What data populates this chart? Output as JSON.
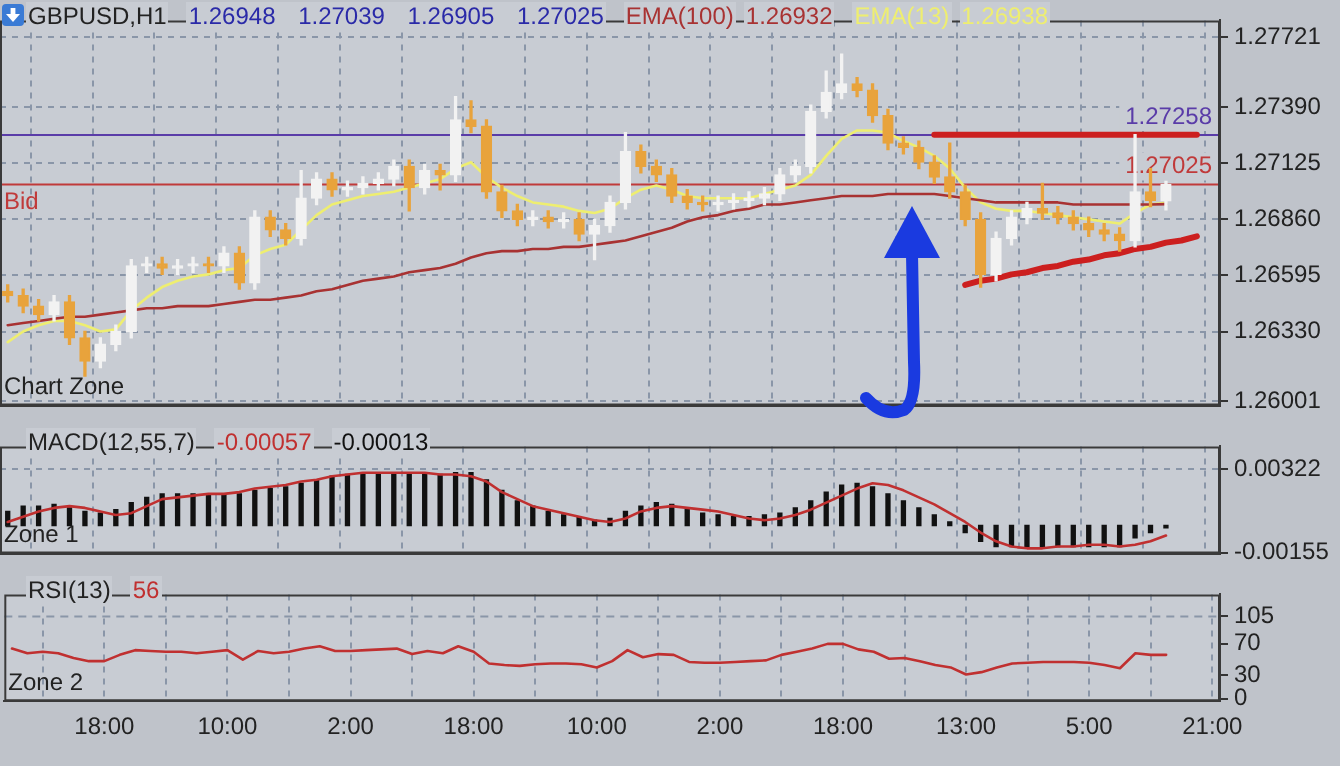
{
  "chart_data": [
    {
      "type": "candlestick",
      "title": "GBPUSD,H1",
      "subtitle": "1.26948 1.27039 1.26905 1.27025",
      "categories": [
        null,
        null,
        null,
        null,
        null,
        null,
        null,
        null,
        null,
        null,
        null,
        null,
        null,
        null,
        null,
        null,
        null,
        null,
        null,
        null,
        null,
        null,
        null,
        null,
        null,
        null,
        null,
        null,
        null,
        null,
        null,
        null,
        null,
        null,
        null,
        null,
        null,
        null,
        null,
        null,
        null,
        null,
        null,
        null,
        null,
        null,
        null,
        null,
        null,
        null,
        null,
        null,
        null,
        null,
        null,
        null,
        null,
        null,
        null,
        null,
        null,
        null,
        null,
        null,
        null,
        null,
        null,
        null,
        null,
        null,
        null,
        null,
        null,
        null,
        null,
        null,
        null,
        null,
        null
      ],
      "series": [
        {
          "type": "candlestick",
          "colors": [
            "#e8a33c",
            "#e8a33c",
            "#e8a33c",
            "#f2f2f2",
            "#e8a33c",
            "#e8a33c",
            "#f2f2f2",
            "#f2f2f2",
            "#f2f2f2",
            "#f2f2f2",
            "#e8a33c",
            "#f2f2f2",
            "#f2f2f2",
            "#e8a33c",
            "#f2f2f2",
            "#e8a33c",
            "#f2f2f2",
            "#e8a33c",
            "#e8a33c",
            "#f2f2f2",
            "#f2f2f2",
            "#e8a33c",
            "#f2f2f2",
            "#f2f2f2",
            "#f2f2f2",
            "#f2f2f2",
            "#e8a33c",
            "#f2f2f2",
            "#e8a33c",
            "#f2f2f2",
            "#e8a33c",
            "#e8a33c",
            "#e8a33c",
            "#e8a33c",
            "#f2f2f2",
            "#e8a33c",
            "#f2f2f2",
            "#e8a33c",
            "#f2f2f2",
            "#f2f2f2",
            "#f2f2f2",
            "#e8a33c",
            "#e8a33c",
            "#e8a33c",
            "#e8a33c",
            "#e8a33c",
            "#f2f2f2",
            "#f2f2f2",
            "#f2f2f2",
            "#f2f2f2",
            "#f2f2f2",
            "#f2f2f2",
            "#f2f2f2",
            "#f2f2f2",
            "#f2f2f2",
            "#e8a33c",
            "#e8a33c",
            "#e8a33c",
            "#e8a33c",
            "#e8a33c",
            "#e8a33c",
            "#e8a33c",
            "#e8a33c",
            "#e8a33c",
            "#f2f2f2",
            "#f2f2f2",
            "#f2f2f2",
            "#e8a33c",
            "#e8a33c",
            "#e8a33c",
            "#e8a33c",
            "#e8a33c",
            "#e8a33c",
            "#f2f2f2",
            "#e8a33c",
            "#f2f2f2",
            null,
            null,
            null
          ],
          "ohlc": [
            [
              1.2652,
              1.2655,
              1.2647,
              1.265
            ],
            [
              1.265,
              1.2653,
              1.2642,
              1.2645
            ],
            [
              1.2645,
              1.2648,
              1.2638,
              1.2641
            ],
            [
              1.2641,
              1.265,
              1.2638,
              1.2647
            ],
            [
              1.2647,
              1.265,
              1.2627,
              1.263
            ],
            [
              1.263,
              1.2633,
              1.2612,
              1.2619
            ],
            [
              1.2619,
              1.263,
              1.2616,
              1.2627
            ],
            [
              1.2627,
              1.2636,
              1.2624,
              1.2633
            ],
            [
              1.2633,
              1.2667,
              1.263,
              1.2664
            ],
            [
              1.2664,
              1.2668,
              1.2661,
              1.2665
            ],
            [
              1.2665,
              1.2668,
              1.266,
              1.2663
            ],
            [
              1.2663,
              1.2667,
              1.266,
              1.2664
            ],
            [
              1.2664,
              1.2668,
              1.2661,
              1.2665
            ],
            [
              1.2665,
              1.2668,
              1.2661,
              1.2664
            ],
            [
              1.2664,
              1.2673,
              1.2661,
              1.267
            ],
            [
              1.267,
              1.2673,
              1.2653,
              1.2656
            ],
            [
              1.2656,
              1.269,
              1.2653,
              1.2687
            ],
            [
              1.2687,
              1.269,
              1.2678,
              1.2681
            ],
            [
              1.2681,
              1.2684,
              1.2674,
              1.2677
            ],
            [
              1.2677,
              1.2709,
              1.2674,
              1.2696
            ],
            [
              1.2696,
              1.2708,
              1.2693,
              1.2705
            ],
            [
              1.2705,
              1.2708,
              1.2697,
              1.27
            ],
            [
              1.27,
              1.2704,
              1.2697,
              1.2701
            ],
            [
              1.2701,
              1.2706,
              1.2698,
              1.2703
            ],
            [
              1.2703,
              1.2708,
              1.27,
              1.2705
            ],
            [
              1.2705,
              1.2714,
              1.2702,
              1.2711
            ],
            [
              1.2711,
              1.2714,
              1.269,
              1.2701
            ],
            [
              1.2701,
              1.2712,
              1.2698,
              1.2709
            ],
            [
              1.2709,
              1.2712,
              1.27,
              1.2707
            ],
            [
              1.2707,
              1.2744,
              1.2704,
              1.2733
            ],
            [
              1.2733,
              1.2742,
              1.2727,
              1.273
            ],
            [
              1.273,
              1.2733,
              1.2696,
              1.2699
            ],
            [
              1.2699,
              1.2702,
              1.2687,
              1.269
            ],
            [
              1.269,
              1.2693,
              1.2683,
              1.2686
            ],
            [
              1.2686,
              1.269,
              1.2683,
              1.2687
            ],
            [
              1.2687,
              1.269,
              1.2682,
              1.2685
            ],
            [
              1.2685,
              1.2689,
              1.2682,
              1.2686
            ],
            [
              1.2686,
              1.2689,
              1.2676,
              1.2679
            ],
            [
              1.2679,
              1.2686,
              1.2667,
              1.2683
            ],
            [
              1.2683,
              1.2697,
              1.268,
              1.2694
            ],
            [
              1.2694,
              1.2727,
              1.2691,
              1.2718
            ],
            [
              1.2718,
              1.2721,
              1.2708,
              1.2711
            ],
            [
              1.2711,
              1.2714,
              1.2704,
              1.2707
            ],
            [
              1.2707,
              1.271,
              1.2694,
              1.2697
            ],
            [
              1.2697,
              1.27,
              1.2691,
              1.2694
            ],
            [
              1.2694,
              1.2697,
              1.269,
              1.2693
            ],
            [
              1.2693,
              1.2697,
              1.269,
              1.2694
            ],
            [
              1.2694,
              1.2698,
              1.2691,
              1.2695
            ],
            [
              1.2695,
              1.2699,
              1.2692,
              1.2696
            ],
            [
              1.2696,
              1.2701,
              1.2693,
              1.2698
            ],
            [
              1.2698,
              1.271,
              1.2695,
              1.2707
            ],
            [
              1.2707,
              1.2714,
              1.2704,
              1.2711
            ],
            [
              1.2711,
              1.274,
              1.2708,
              1.2737
            ],
            [
              1.2737,
              1.2756,
              1.2734,
              1.2746
            ],
            [
              1.2746,
              1.2764,
              1.2743,
              1.275
            ],
            [
              1.275,
              1.2753,
              1.2744,
              1.2747
            ],
            [
              1.2747,
              1.275,
              1.2732,
              1.2735
            ],
            [
              1.2735,
              1.2738,
              1.2719,
              1.2722
            ],
            [
              1.2722,
              1.2725,
              1.2717,
              1.272
            ],
            [
              1.272,
              1.2723,
              1.271,
              1.2713
            ],
            [
              1.2713,
              1.2716,
              1.2703,
              1.2706
            ],
            [
              1.2706,
              1.2722,
              1.2696,
              1.2699
            ],
            [
              1.2699,
              1.2702,
              1.2683,
              1.2686
            ],
            [
              1.2686,
              1.2689,
              1.2654,
              1.266
            ],
            [
              1.266,
              1.268,
              1.2657,
              1.2677
            ],
            [
              1.2677,
              1.269,
              1.2674,
              1.2687
            ],
            [
              1.2687,
              1.2694,
              1.2684,
              1.2691
            ],
            [
              1.2691,
              1.2703,
              1.2686,
              1.2689
            ],
            [
              1.2689,
              1.2692,
              1.2684,
              1.2687
            ],
            [
              1.2687,
              1.269,
              1.2681,
              1.2684
            ],
            [
              1.2684,
              1.2687,
              1.2678,
              1.2681
            ],
            [
              1.2681,
              1.2684,
              1.2676,
              1.2679
            ],
            [
              1.2679,
              1.2682,
              1.2671,
              1.2676
            ],
            [
              1.2676,
              1.2726,
              1.2673,
              1.2699
            ],
            [
              1.2699,
              1.271,
              1.2692,
              1.2695
            ],
            [
              1.26948,
              1.27039,
              1.26905,
              1.27025
            ],
            null,
            null,
            null
          ]
        },
        {
          "type": "line",
          "name": "EMA(100)",
          "color": "#a83232",
          "values": [
            1.2636,
            1.2637,
            1.2638,
            1.2639,
            1.264,
            1.264,
            1.2641,
            1.2642,
            1.2643,
            1.2644,
            1.2644,
            1.2645,
            1.2645,
            1.2645,
            1.2646,
            1.2647,
            1.2648,
            1.2648,
            1.2649,
            1.265,
            1.2652,
            1.2653,
            1.2655,
            1.2657,
            1.2658,
            1.2659,
            1.2661,
            1.2662,
            1.2663,
            1.2665,
            1.2668,
            1.267,
            1.2671,
            1.2671,
            1.2672,
            1.2672,
            1.2673,
            1.2673,
            1.2674,
            1.2675,
            1.2676,
            1.2678,
            1.268,
            1.2682,
            1.2685,
            1.2687,
            1.2688,
            1.269,
            1.2691,
            1.2693,
            1.2693,
            1.2694,
            1.2695,
            1.2696,
            1.2697,
            1.2697,
            1.2697,
            1.2698,
            1.2698,
            1.2698,
            1.2698,
            1.2697,
            1.2696,
            1.2695,
            1.2694,
            1.2694,
            1.2694,
            1.2694,
            1.2694,
            1.2693,
            1.2693,
            1.2693,
            1.2693,
            1.2693,
            1.2693,
            1.26932,
            null,
            null,
            null
          ]
        },
        {
          "type": "line",
          "name": "EMA(13)",
          "color": "#eeee70",
          "values": [
            1.2628,
            1.2633,
            1.2636,
            1.2638,
            1.2638,
            1.2636,
            1.2633,
            1.2634,
            1.2643,
            1.2649,
            1.2654,
            1.2657,
            1.2659,
            1.266,
            1.2662,
            1.2663,
            1.2669,
            1.2672,
            1.2674,
            1.2681,
            1.2688,
            1.2693,
            1.2695,
            1.2697,
            1.2698,
            1.2699,
            1.2701,
            1.2703,
            1.2705,
            1.271,
            1.2713,
            1.2706,
            1.2701,
            1.2697,
            1.2694,
            1.2693,
            1.2692,
            1.269,
            1.2689,
            1.2691,
            1.2696,
            1.27,
            1.2702,
            1.27,
            1.2697,
            1.2696,
            1.2696,
            1.2696,
            1.2696,
            1.2698,
            1.27,
            1.2702,
            1.2707,
            1.2716,
            1.2724,
            1.2728,
            1.2728,
            1.2727,
            1.2723,
            1.272,
            1.2716,
            1.271,
            1.2701,
            1.2694,
            1.2691,
            1.269,
            1.269,
            1.2689,
            1.2688,
            1.2687,
            1.2686,
            1.2685,
            1.2684,
            1.2689,
            1.2693,
            1.26938,
            null,
            null,
            null
          ]
        },
        {
          "type": "line",
          "color": "#cc1f1f",
          "values": [
            null,
            null,
            null,
            null,
            null,
            null,
            null,
            null,
            null,
            null,
            null,
            null,
            null,
            null,
            null,
            null,
            null,
            null,
            null,
            null,
            null,
            null,
            null,
            null,
            null,
            null,
            null,
            null,
            null,
            null,
            null,
            null,
            null,
            null,
            null,
            null,
            null,
            null,
            null,
            null,
            null,
            null,
            null,
            null,
            null,
            null,
            null,
            null,
            null,
            null,
            null,
            null,
            null,
            null,
            null,
            null,
            null,
            null,
            null,
            null,
            1.2726,
            1.2726,
            1.2726,
            1.2726,
            1.2726,
            1.2726,
            1.2726,
            1.2726,
            1.2726,
            1.2726,
            1.2726,
            1.2726,
            1.2726,
            1.2726,
            1.2726,
            1.2726,
            1.2726,
            1.2726,
            null
          ]
        },
        {
          "type": "line",
          "color": "#cc1f1f",
          "values": [
            null,
            null,
            null,
            null,
            null,
            null,
            null,
            null,
            null,
            null,
            null,
            null,
            null,
            null,
            null,
            null,
            null,
            null,
            null,
            null,
            null,
            null,
            null,
            null,
            null,
            null,
            null,
            null,
            null,
            null,
            null,
            null,
            null,
            null,
            null,
            null,
            null,
            null,
            null,
            null,
            null,
            null,
            null,
            null,
            null,
            null,
            null,
            null,
            null,
            null,
            null,
            null,
            null,
            null,
            null,
            null,
            null,
            null,
            null,
            null,
            null,
            null,
            1.2655,
            1.2657,
            1.2658,
            1.266,
            1.2661,
            1.2663,
            1.2664,
            1.2666,
            1.2667,
            1.2669,
            1.267,
            1.2672,
            1.2673,
            1.2675,
            1.2676,
            1.2678,
            null
          ]
        }
      ],
      "ylim": [
        1.2598,
        1.278
      ],
      "yticks": [
        1.26001,
        {
          "value": 1.2633,
          "label": "1.26330"
        },
        1.26595,
        {
          "value": 1.2686,
          "label": "1.26860"
        },
        1.27125,
        {
          "value": 1.2739,
          "label": "1.27390"
        },
        1.27721
      ],
      "grid": true,
      "legend": "top",
      "marker": "none",
      "tick_labels": "y",
      "ref_lines": [
        {
          "axis": "y",
          "value": 1.27258,
          "label": "1.27258",
          "color": "#5a3ca8"
        },
        {
          "axis": "y",
          "value": 1.27025,
          "label": "1.27025",
          "color": "#c03a3a"
        }
      ],
      "annotations": [
        "Chart Zone",
        "1.26932",
        "1.26938",
        {
          "text": "Bid",
          "y": 1.27025
        }
      ]
    },
    {
      "type": "bar",
      "title": "MACD(12,55,7)",
      "categories": [
        null,
        null,
        null,
        null,
        null,
        null,
        null,
        null,
        null,
        null,
        null,
        null,
        null,
        null,
        null,
        null,
        null,
        null,
        null,
        null,
        null,
        null,
        null,
        null,
        null,
        null,
        null,
        null,
        null,
        null,
        null,
        null,
        null,
        null,
        null,
        null,
        null,
        null,
        null,
        null,
        null,
        null,
        null,
        null,
        null,
        null,
        null,
        null,
        null,
        null,
        null,
        null,
        null,
        null,
        null,
        null,
        null,
        null,
        null,
        null,
        null,
        null,
        null,
        null,
        null,
        null,
        null,
        null,
        null,
        null,
        null,
        null,
        null,
        null,
        null,
        null,
        null,
        null,
        null
      ],
      "series": [
        {
          "type": "line",
          "color": "#c03030",
          "values": [
            0.0002,
            0.0005,
            0.0008,
            0.001,
            0.0011,
            0.001,
            0.0008,
            0.0006,
            0.0007,
            0.0011,
            0.0015,
            0.0016,
            0.0017,
            0.0018,
            0.0018,
            0.0019,
            0.0021,
            0.0022,
            0.0023,
            0.0025,
            0.0026,
            0.0028,
            0.0029,
            0.003,
            0.003,
            0.003,
            0.003,
            0.003,
            0.0029,
            0.0029,
            0.0028,
            0.0025,
            0.0019,
            0.0015,
            0.0011,
            0.0009,
            0.0007,
            0.0005,
            0.0003,
            0.0002,
            0.0004,
            0.0008,
            0.001,
            0.0011,
            0.001,
            0.0009,
            0.0008,
            0.0006,
            0.0004,
            0.0003,
            0.0004,
            0.0006,
            0.0009,
            0.0013,
            0.0017,
            0.0021,
            0.0024,
            0.0023,
            0.002,
            0.0016,
            0.0012,
            0.0007,
            0.0002,
            -0.0004,
            -0.0009,
            -0.0012,
            -0.0013,
            -0.0013,
            -0.0012,
            -0.0012,
            -0.0011,
            -0.0011,
            -0.0012,
            -0.0011,
            -0.0009,
            -0.00057,
            null,
            null,
            null
          ]
        },
        {
          "type": "bar",
          "color": "#111111",
          "values": [
            0.0008,
            0.0011,
            0.0011,
            0.0012,
            0.001,
            0.0008,
            0.0007,
            0.0009,
            0.0013,
            0.0016,
            0.0018,
            0.0018,
            0.0018,
            0.0018,
            0.0017,
            0.0018,
            0.002,
            0.0021,
            0.0022,
            0.0024,
            0.0026,
            0.0028,
            0.0029,
            0.003,
            0.003,
            0.003,
            0.003,
            0.0029,
            0.0029,
            0.003,
            0.003,
            0.0026,
            0.002,
            0.0014,
            0.0011,
            0.0008,
            0.0006,
            0.0005,
            0.0003,
            0.0004,
            0.0008,
            0.0011,
            0.0013,
            0.0012,
            0.0009,
            0.0007,
            0.0006,
            0.0005,
            0.0005,
            0.0006,
            0.0007,
            0.001,
            0.0014,
            0.0019,
            0.0023,
            0.0024,
            0.0022,
            0.0018,
            0.0014,
            0.001,
            0.0006,
            0.0002,
            -0.0004,
            -0.0009,
            -0.0012,
            -0.0012,
            -0.0012,
            -0.0012,
            -0.0012,
            -0.0012,
            -0.0012,
            -0.0012,
            -0.0012,
            -0.0007,
            -0.0004,
            -0.00013,
            null,
            null,
            null
          ]
        }
      ],
      "ylim": [
        -0.0016,
        0.0045
      ],
      "yticks": [
        -0.00155,
        0.00322
      ],
      "grid": true,
      "marker": "none",
      "tick_labels": "y",
      "annotations": [
        "Zone 1",
        "-0.00057",
        "-0.00013"
      ]
    },
    {
      "type": "line",
      "title": "RSI(13)",
      "categories": [
        null,
        null,
        null,
        null,
        null,
        null,
        "18:00",
        null,
        null,
        null,
        null,
        null,
        null,
        null,
        "10:00",
        null,
        null,
        null,
        null,
        null,
        null,
        null,
        "2:00",
        null,
        null,
        null,
        null,
        null,
        null,
        null,
        "18:00",
        null,
        null,
        null,
        null,
        null,
        null,
        null,
        "10:00",
        null,
        null,
        null,
        null,
        null,
        null,
        null,
        "2:00",
        null,
        null,
        null,
        null,
        null,
        null,
        null,
        "18:00",
        null,
        null,
        null,
        null,
        null,
        null,
        null,
        "13:00",
        null,
        null,
        null,
        null,
        null,
        null,
        null,
        "5:00",
        null,
        null,
        null,
        null,
        null,
        null,
        null,
        "21:00"
      ],
      "series": [
        {
          "type": "line",
          "color": "#c03030",
          "values": [
            64,
            58,
            60,
            58,
            52,
            48,
            48,
            56,
            62,
            61,
            60,
            60,
            58,
            60,
            62,
            50,
            61,
            58,
            60,
            64,
            67,
            61,
            61,
            62,
            63,
            64,
            57,
            61,
            58,
            67,
            60,
            45,
            43,
            42,
            44,
            45,
            45,
            44,
            40,
            48,
            62,
            53,
            57,
            56,
            47,
            46,
            46,
            47,
            48,
            49,
            56,
            60,
            64,
            70,
            70,
            63,
            60,
            51,
            52,
            48,
            43,
            40,
            31,
            34,
            40,
            45,
            46,
            47,
            47,
            47,
            46,
            43,
            39,
            58,
            56,
            56,
            null,
            null,
            null
          ]
        }
      ],
      "ylim": [
        -3,
        133
      ],
      "yticks": [
        0,
        30,
        70,
        105
      ],
      "grid": "x",
      "marker": "none",
      "ref_lines": [
        {
          "axis": "y",
          "value": 105,
          "color": "#8a96a8",
          "line_style": "dashed"
        }
      ],
      "annotations": [
        "Zone 2",
        "56"
      ]
    }
  ]
}
